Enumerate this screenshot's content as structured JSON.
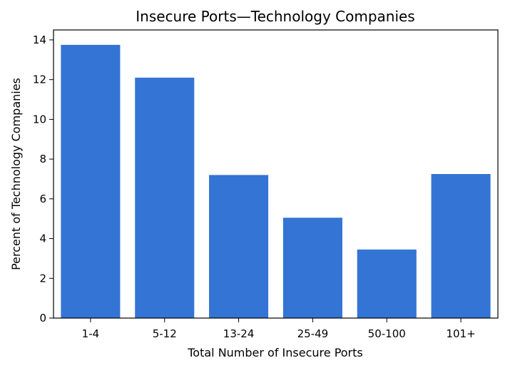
{
  "chart_data": {
    "type": "bar",
    "title": "Insecure Ports—Technology Companies",
    "xlabel": "Total Number of Insecure Ports",
    "ylabel": "Percent of Technology Companies",
    "categories": [
      "1-4",
      "5-12",
      "13-24",
      "25-49",
      "50-100",
      "101+"
    ],
    "values": [
      13.75,
      12.1,
      7.2,
      5.05,
      3.45,
      7.25
    ],
    "ylim": [
      0,
      14.5
    ],
    "yticks": [
      0,
      2,
      4,
      6,
      8,
      10,
      12,
      14
    ],
    "bar_color": "#3474d4",
    "grid": false
  }
}
